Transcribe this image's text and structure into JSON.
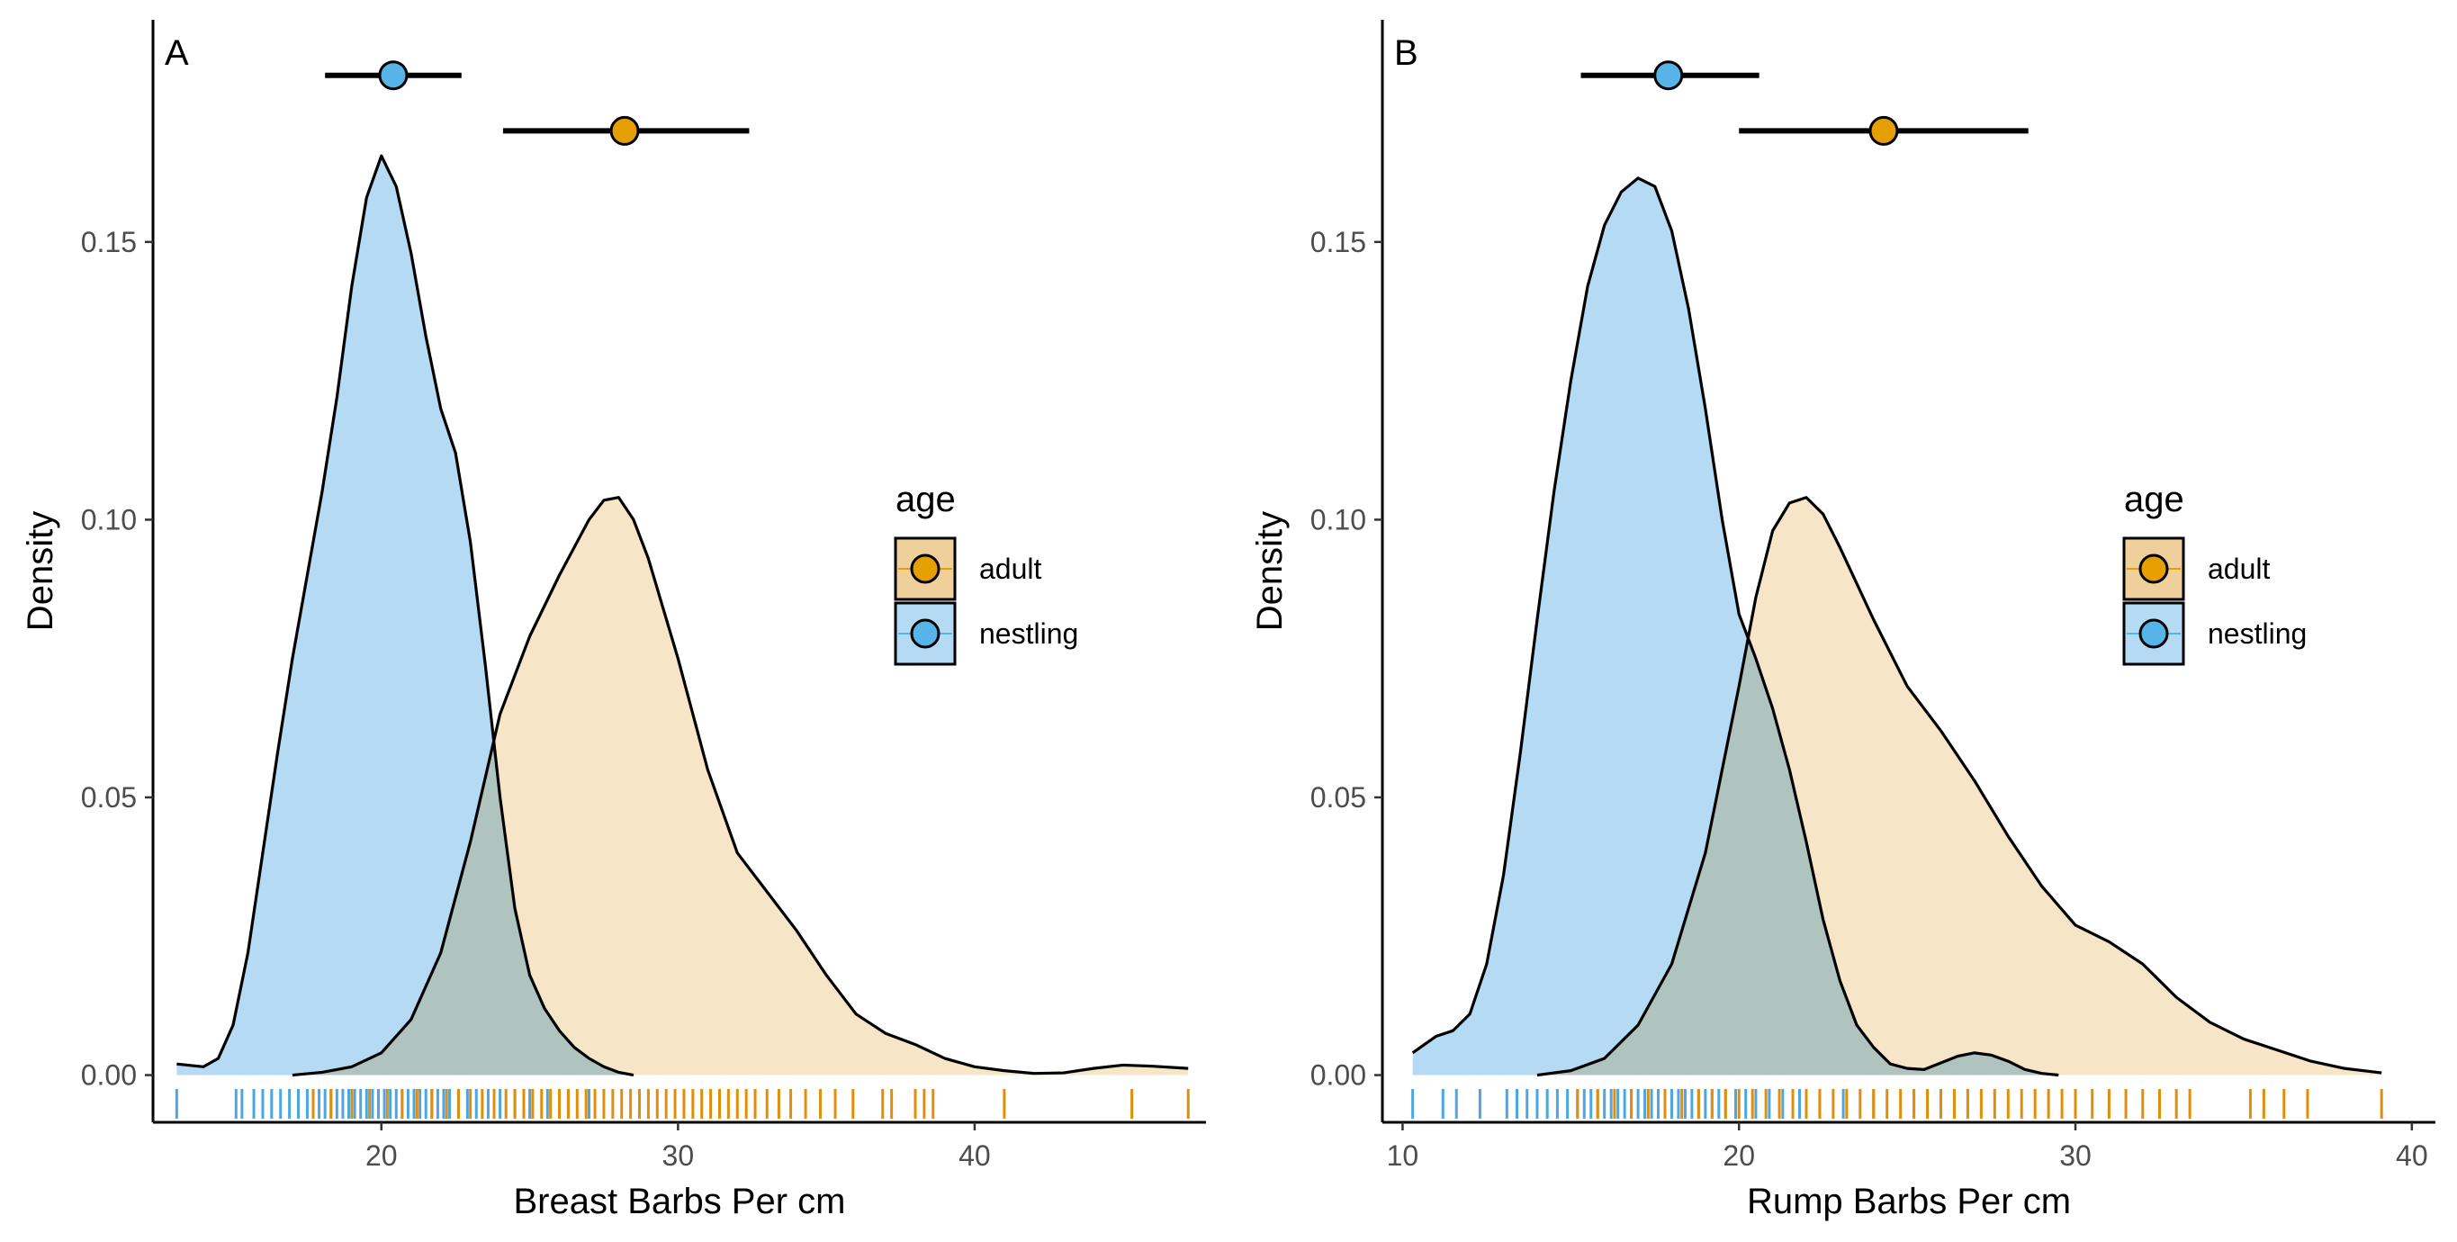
{
  "colors": {
    "adult": "#E69F00",
    "nestling": "#56B4E9",
    "adult_fill": "#F0D09A",
    "nestling_fill": "#B5DAF3",
    "overlap_fill": "#AFBFB6",
    "adult_rug": "#E08E0B",
    "nestling_rug": "#4DA6E0"
  },
  "chart_data": [
    {
      "type": "density",
      "panel": "A",
      "xlabel": "Breast Barbs Per cm",
      "ylabel": "Density",
      "xlim": [
        12.3,
        47.8
      ],
      "ylim": [
        -0.0085,
        0.19
      ],
      "x_ticks": [
        20,
        30,
        40
      ],
      "x_tick_labels": [
        "20",
        "30",
        "40"
      ],
      "y_ticks": [
        0,
        0.05,
        0.1,
        0.15
      ],
      "y_tick_labels": [
        "0.00",
        "0.05",
        "0.10",
        "0.15"
      ],
      "legend": {
        "title": "age",
        "entries": [
          "adult",
          "nestling"
        ]
      },
      "series": [
        {
          "name": "nestling",
          "density": [
            [
              13.1,
              0.002
            ],
            [
              14,
              0.0015
            ],
            [
              14.5,
              0.003
            ],
            [
              15,
              0.009
            ],
            [
              15.5,
              0.022
            ],
            [
              16,
              0.04
            ],
            [
              16.5,
              0.058
            ],
            [
              17,
              0.075
            ],
            [
              17.5,
              0.09
            ],
            [
              18,
              0.105
            ],
            [
              18.5,
              0.122
            ],
            [
              19,
              0.142
            ],
            [
              19.5,
              0.158
            ],
            [
              20,
              0.1655
            ],
            [
              20.5,
              0.16
            ],
            [
              21,
              0.148
            ],
            [
              21.5,
              0.133
            ],
            [
              22,
              0.12
            ],
            [
              22.5,
              0.112
            ],
            [
              23,
              0.096
            ],
            [
              23.5,
              0.074
            ],
            [
              24,
              0.05
            ],
            [
              24.5,
              0.03
            ],
            [
              25,
              0.018
            ],
            [
              25.5,
              0.012
            ],
            [
              26,
              0.008
            ],
            [
              26.5,
              0.005
            ],
            [
              27,
              0.003
            ],
            [
              27.5,
              0.0015
            ],
            [
              28,
              0.0005
            ],
            [
              28.5,
              0
            ]
          ],
          "mean": 20.4,
          "ci": [
            18.1,
            22.7
          ],
          "rug": [
            13.1,
            15.1,
            15.3,
            15.7,
            16.0,
            16.3,
            16.6,
            16.9,
            17.2,
            17.5,
            17.7,
            17.9,
            18.1,
            18.3,
            18.5,
            18.7,
            18.9,
            19.1,
            19.3,
            19.5,
            19.7,
            19.9,
            20.1,
            20.3,
            20.5,
            20.7,
            20.9,
            21.1,
            21.3,
            21.5,
            21.7,
            21.9,
            22.1,
            22.3,
            22.6,
            22.9,
            23.2,
            23.6,
            24.0,
            24.5,
            25.0,
            25.6,
            26.3,
            27.0
          ]
        },
        {
          "name": "adult",
          "density": [
            [
              17,
              0
            ],
            [
              18,
              0.0005
            ],
            [
              19,
              0.0015
            ],
            [
              20,
              0.004
            ],
            [
              21,
              0.01
            ],
            [
              22,
              0.022
            ],
            [
              23,
              0.042
            ],
            [
              24,
              0.065
            ],
            [
              25,
              0.079
            ],
            [
              26,
              0.09
            ],
            [
              27,
              0.1
            ],
            [
              27.5,
              0.1035
            ],
            [
              28,
              0.104
            ],
            [
              28.5,
              0.1
            ],
            [
              29,
              0.093
            ],
            [
              30,
              0.075
            ],
            [
              31,
              0.055
            ],
            [
              32,
              0.04
            ],
            [
              33,
              0.033
            ],
            [
              34,
              0.026
            ],
            [
              35,
              0.018
            ],
            [
              36,
              0.011
            ],
            [
              37,
              0.0075
            ],
            [
              38,
              0.0055
            ],
            [
              39,
              0.003
            ],
            [
              40,
              0.0015
            ],
            [
              41,
              0.0008
            ],
            [
              42,
              0.0003
            ],
            [
              43,
              0.0004
            ],
            [
              44,
              0.0012
            ],
            [
              45,
              0.0018
            ],
            [
              46,
              0.0016
            ],
            [
              47.2,
              0.0012
            ]
          ],
          "mean": 28.2,
          "ci": [
            24.1,
            32.4
          ],
          "rug": [
            17.7,
            18.3,
            19.0,
            19.6,
            20.2,
            20.7,
            21.2,
            21.7,
            22.2,
            22.6,
            23.0,
            23.4,
            23.8,
            24.2,
            24.5,
            24.8,
            25.1,
            25.4,
            25.7,
            26.0,
            26.3,
            26.6,
            26.9,
            27.2,
            27.5,
            27.8,
            28.1,
            28.4,
            28.7,
            29.0,
            29.3,
            29.6,
            29.9,
            30.2,
            30.5,
            30.8,
            31.1,
            31.4,
            31.7,
            32.0,
            32.3,
            32.6,
            33.0,
            33.4,
            33.8,
            34.3,
            34.8,
            35.3,
            35.9,
            36.9,
            37.2,
            38.0,
            38.3,
            38.6,
            41.0,
            45.3,
            47.2
          ]
        }
      ]
    },
    {
      "type": "density",
      "panel": "B",
      "xlabel": "Rump Barbs Per cm",
      "ylabel": "Density",
      "xlim": [
        9.4,
        40.7
      ],
      "ylim": [
        -0.0085,
        0.19
      ],
      "x_ticks": [
        10,
        20,
        30,
        40
      ],
      "x_tick_labels": [
        "10",
        "20",
        "30",
        "40"
      ],
      "y_ticks": [
        0,
        0.05,
        0.1,
        0.15
      ],
      "y_tick_labels": [
        "0.00",
        "0.05",
        "0.10",
        "0.15"
      ],
      "legend": {
        "title": "age",
        "entries": [
          "adult",
          "nestling"
        ]
      },
      "series": [
        {
          "name": "nestling",
          "density": [
            [
              10.3,
              0.004
            ],
            [
              11,
              0.007
            ],
            [
              11.5,
              0.008
            ],
            [
              12,
              0.011
            ],
            [
              12.5,
              0.02
            ],
            [
              13,
              0.036
            ],
            [
              13.5,
              0.058
            ],
            [
              14,
              0.082
            ],
            [
              14.5,
              0.105
            ],
            [
              15,
              0.125
            ],
            [
              15.5,
              0.142
            ],
            [
              16,
              0.153
            ],
            [
              16.5,
              0.159
            ],
            [
              17,
              0.1615
            ],
            [
              17.5,
              0.16
            ],
            [
              18,
              0.152
            ],
            [
              18.5,
              0.138
            ],
            [
              19,
              0.12
            ],
            [
              19.5,
              0.1
            ],
            [
              20,
              0.083
            ],
            [
              20.5,
              0.075
            ],
            [
              21,
              0.066
            ],
            [
              21.5,
              0.055
            ],
            [
              22,
              0.042
            ],
            [
              22.5,
              0.028
            ],
            [
              23,
              0.017
            ],
            [
              23.5,
              0.009
            ],
            [
              24,
              0.005
            ],
            [
              24.5,
              0.002
            ],
            [
              25,
              0.0012
            ],
            [
              25.5,
              0.001
            ],
            [
              26,
              0.0022
            ],
            [
              26.5,
              0.0034
            ],
            [
              27,
              0.004
            ],
            [
              27.5,
              0.0036
            ],
            [
              28,
              0.0025
            ],
            [
              28.5,
              0.001
            ],
            [
              29,
              0.0003
            ],
            [
              29.5,
              0
            ]
          ],
          "mean": 17.9,
          "ci": [
            15.3,
            20.6
          ],
          "rug": [
            10.3,
            11.2,
            11.6,
            12.3,
            13.1,
            13.4,
            13.7,
            14.0,
            14.3,
            14.6,
            14.9,
            15.2,
            15.4,
            15.6,
            15.8,
            16.0,
            16.2,
            16.4,
            16.6,
            16.8,
            17.0,
            17.2,
            17.4,
            17.6,
            17.8,
            18.0,
            18.2,
            18.4,
            18.6,
            18.8,
            19.0,
            19.2,
            19.4,
            19.6,
            19.9,
            20.2,
            20.5,
            20.9,
            21.3,
            21.8,
            22.4,
            23.1,
            24.0,
            25.2,
            26.8
          ]
        },
        {
          "name": "adult",
          "density": [
            [
              14,
              0
            ],
            [
              15,
              0.0008
            ],
            [
              16,
              0.003
            ],
            [
              17,
              0.009
            ],
            [
              18,
              0.02
            ],
            [
              19,
              0.04
            ],
            [
              19.5,
              0.055
            ],
            [
              20,
              0.07
            ],
            [
              20.5,
              0.086
            ],
            [
              21,
              0.098
            ],
            [
              21.5,
              0.103
            ],
            [
              22,
              0.104
            ],
            [
              22.5,
              0.101
            ],
            [
              23,
              0.095
            ],
            [
              24,
              0.082
            ],
            [
              25,
              0.07
            ],
            [
              26,
              0.062
            ],
            [
              27,
              0.053
            ],
            [
              28,
              0.043
            ],
            [
              29,
              0.034
            ],
            [
              30,
              0.027
            ],
            [
              31,
              0.024
            ],
            [
              32,
              0.02
            ],
            [
              33,
              0.014
            ],
            [
              34,
              0.0095
            ],
            [
              35,
              0.0065
            ],
            [
              36,
              0.0045
            ],
            [
              37,
              0.0025
            ],
            [
              38,
              0.0012
            ],
            [
              39.1,
              0.0004
            ]
          ],
          "mean": 24.3,
          "ci": [
            20.0,
            28.6
          ],
          "rug": [
            15.2,
            15.8,
            16.3,
            16.8,
            17.3,
            17.8,
            18.3,
            18.8,
            19.2,
            19.6,
            20.0,
            20.4,
            20.8,
            21.2,
            21.6,
            22.0,
            22.4,
            22.8,
            23.2,
            23.6,
            24.0,
            24.4,
            24.8,
            25.2,
            25.6,
            26.0,
            26.4,
            26.8,
            27.2,
            27.6,
            28.0,
            28.4,
            28.8,
            29.2,
            29.6,
            30.0,
            30.5,
            31.0,
            31.5,
            32.0,
            32.5,
            33.0,
            33.4,
            35.2,
            35.6,
            36.2,
            36.9,
            39.1
          ]
        }
      ]
    }
  ]
}
